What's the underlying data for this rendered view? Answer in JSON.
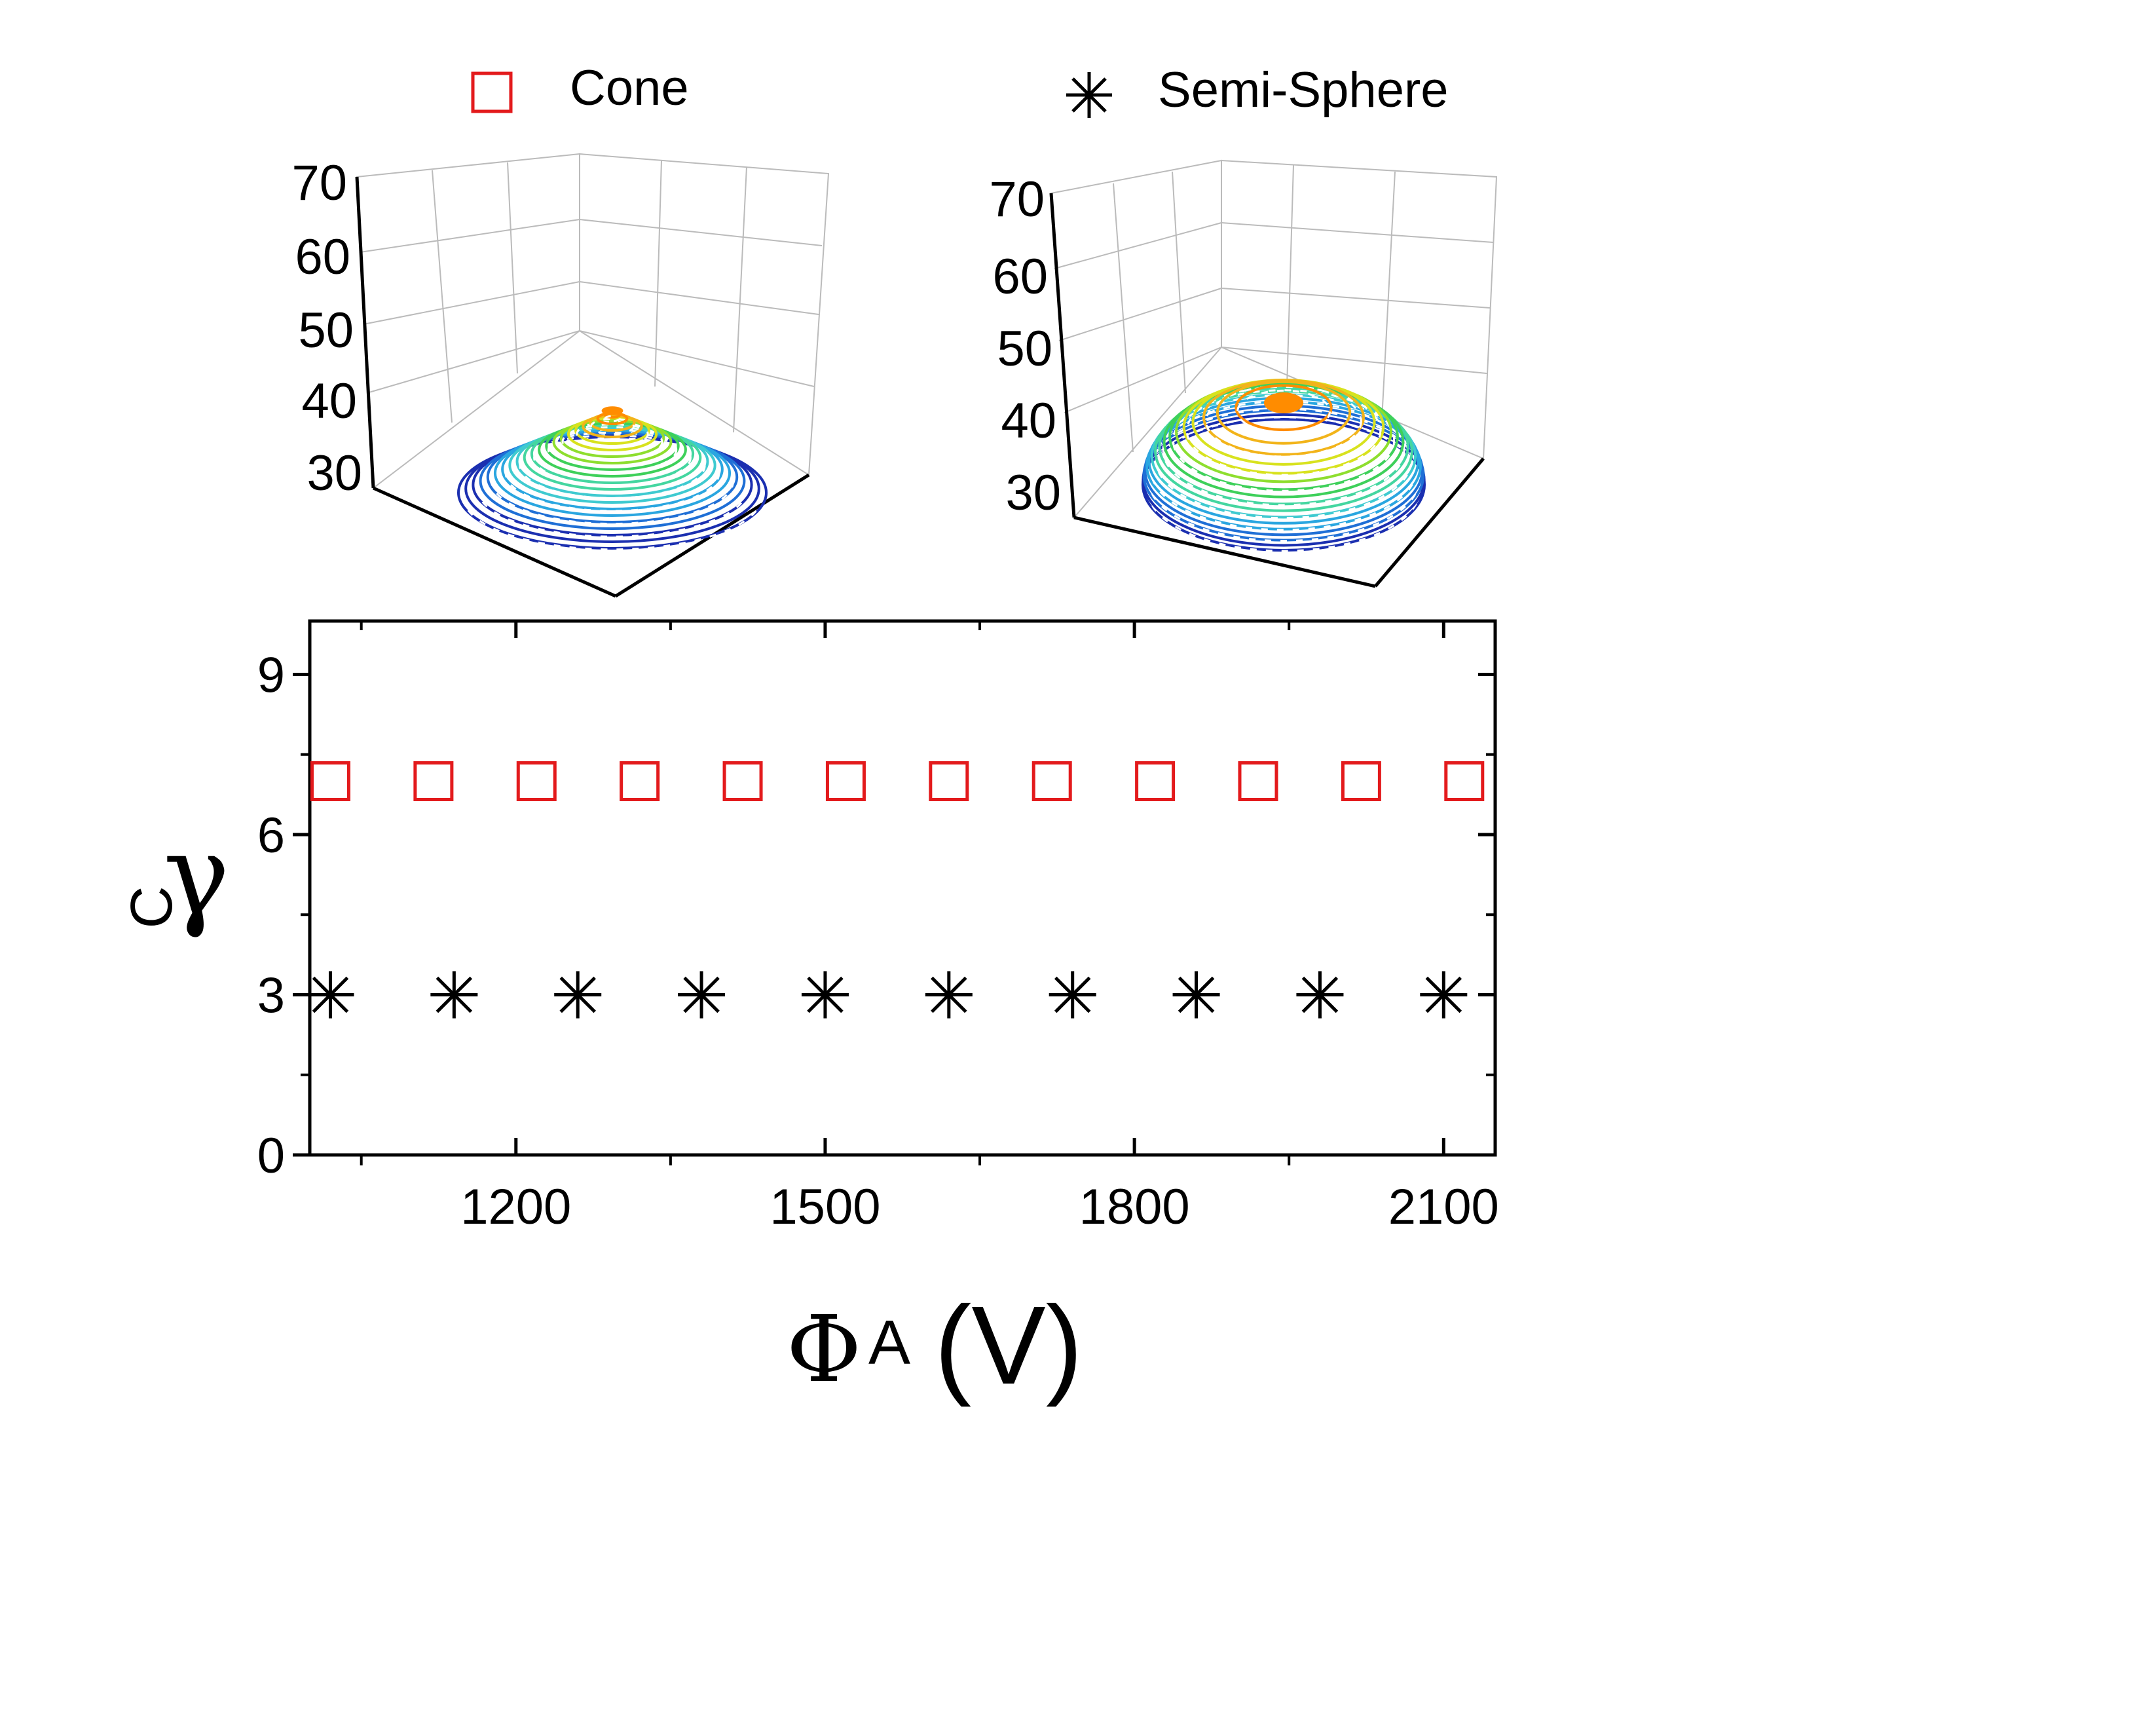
{
  "legend": [
    {
      "label": "Cone",
      "marker": "open-square",
      "color": "#e31a1c"
    },
    {
      "label": "Semi-Sphere",
      "marker": "asterisk",
      "color": "#000000"
    }
  ],
  "insets": [
    {
      "name": "cone-inset",
      "shape": "cone",
      "z_ticks": [
        "70",
        "60",
        "50",
        "40",
        "30"
      ],
      "peak_color": "#ff8c00"
    },
    {
      "name": "semisphere-inset",
      "shape": "semi-sphere",
      "z_ticks": [
        "70",
        "60",
        "50",
        "40",
        "30"
      ],
      "peak_color": "#ff8c00"
    }
  ],
  "colors": {
    "cone": "#e31a1c",
    "semisphere": "#000000",
    "axis": "#000000",
    "grid3d": "#bbbbbb"
  },
  "chart_data": {
    "type": "scatter",
    "title": "",
    "xlabel": {
      "symbol": "Φ",
      "sup": "A",
      "unit": "(V)"
    },
    "ylabel": {
      "symbol": "γ",
      "sub": "C"
    },
    "xlim": [
      1000,
      2150
    ],
    "ylim": [
      0,
      10
    ],
    "x_ticks": [
      1200,
      1500,
      1800,
      2100
    ],
    "x_tick_labels": [
      "1200",
      "1500",
      "1800",
      "2100"
    ],
    "y_ticks": [
      0,
      3,
      6,
      9
    ],
    "y_tick_labels": [
      "0",
      "3",
      "6",
      "9"
    ],
    "legend_position": "top",
    "series": [
      {
        "name": "Cone",
        "marker": "open-square",
        "color": "#e31a1c",
        "x": [
          1020,
          1120,
          1220,
          1320,
          1420,
          1520,
          1620,
          1720,
          1820,
          1920,
          2020,
          2120
        ],
        "y": [
          7,
          7,
          7,
          7,
          7,
          7,
          7,
          7,
          7,
          7,
          7,
          7
        ]
      },
      {
        "name": "Semi-Sphere",
        "marker": "asterisk",
        "color": "#000000",
        "x": [
          1020,
          1140,
          1260,
          1380,
          1500,
          1620,
          1740,
          1860,
          1980,
          2100
        ],
        "y": [
          3,
          3,
          3,
          3,
          3,
          3,
          3,
          3,
          3,
          3
        ]
      }
    ]
  }
}
